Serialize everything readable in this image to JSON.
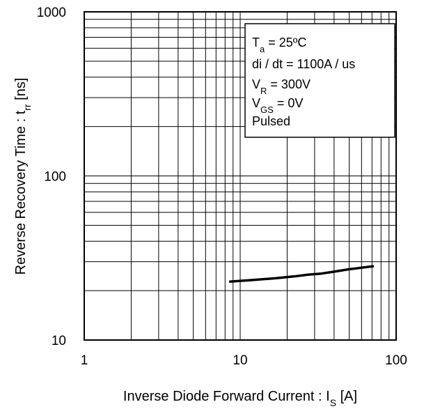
{
  "chart_data": {
    "type": "line",
    "x_scale": "log",
    "y_scale": "log",
    "xlim": [
      1,
      100
    ],
    "ylim": [
      10,
      1000
    ],
    "grid": true,
    "x_ticks": [
      {
        "value": 1,
        "label": "1"
      },
      {
        "value": 10,
        "label": "10"
      },
      {
        "value": 100,
        "label": "100"
      }
    ],
    "y_ticks": [
      {
        "value": 10,
        "label": "10"
      },
      {
        "value": 100,
        "label": "100"
      },
      {
        "value": 1000,
        "label": "1000"
      }
    ],
    "xlabel": {
      "main": "Inverse Diode  Forward Current : I",
      "sub": "S",
      "tail": " [A]"
    },
    "ylabel": {
      "main": "Reverse Recovery Time : t",
      "sub": "rr",
      "tail": " [ns]"
    },
    "series": [
      {
        "color": "#000000",
        "x": [
          8.5,
          12,
          17,
          22,
          27,
          33,
          40,
          50,
          60,
          72
        ],
        "y": [
          22.7,
          23.2,
          23.8,
          24.4,
          25.0,
          25.4,
          26.1,
          27.0,
          27.6,
          28.2
        ]
      }
    ],
    "legend": {
      "placement": "top-right",
      "lines": [
        {
          "main": "T",
          "sub": "a",
          "tail": " = 25ºC"
        },
        {
          "main": "di / dt = 1100A / us",
          "sub": "",
          "tail": ""
        },
        {
          "main": "V",
          "sub": "R",
          "tail": " = 300V"
        },
        {
          "main": "V",
          "sub": "GS",
          "tail": " = 0V"
        },
        {
          "main": "Pulsed",
          "sub": "",
          "tail": ""
        }
      ]
    }
  }
}
